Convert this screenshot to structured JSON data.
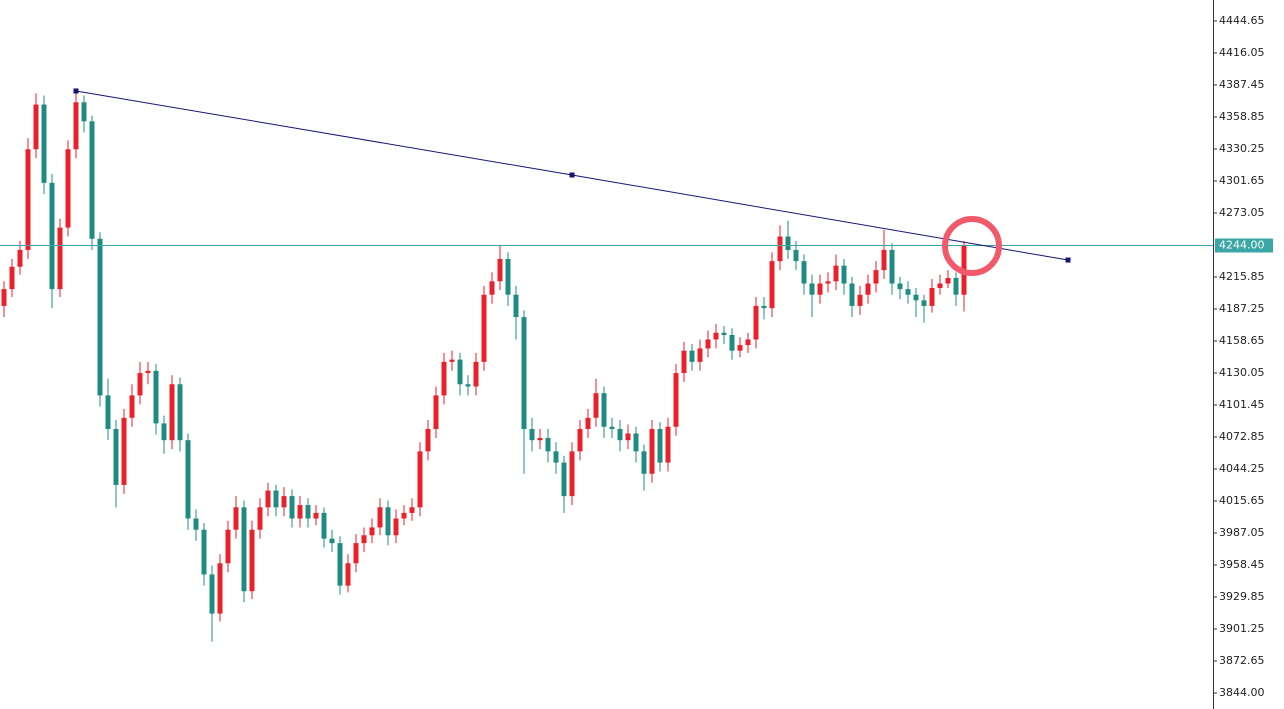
{
  "chart_data": {
    "type": "candlestick",
    "up_color": "#e8212b",
    "down_color": "#1e8c82",
    "ylim": [
      3829.75,
      4463.4
    ],
    "yticks": [
      4444.65,
      4416.05,
      4387.45,
      4358.85,
      4330.25,
      4301.65,
      4273.05,
      4215.85,
      4187.25,
      4158.65,
      4130.05,
      4101.45,
      4072.85,
      4044.25,
      4015.65,
      3987.05,
      3958.45,
      3929.85,
      3901.25,
      3872.65,
      {
        "value": 3844,
        "label": "3844.00"
      }
    ],
    "current_price": {
      "value": 4244,
      "label": "4244.00",
      "color": "#3aa6a6"
    },
    "trendline": {
      "color": "#141478",
      "points": [
        {
          "index": 9,
          "price": 4382.1
        },
        {
          "index": 71,
          "price": 4307
        },
        {
          "index": 133,
          "price": 4231
        }
      ]
    },
    "open": [
      4190,
      4205,
      4225,
      4240,
      4330,
      4370,
      4300,
      4205,
      4260,
      4330,
      4372,
      4355,
      4250,
      4110,
      4080,
      4030,
      4090,
      4110,
      4130,
      4132,
      4085,
      4070,
      4120,
      4070,
      4000,
      3990,
      3950,
      3915,
      3960,
      3990,
      4010,
      3935,
      3990,
      4010,
      4025,
      4010,
      4020,
      4000,
      4012,
      4000,
      4005,
      3982,
      3978,
      3940,
      3960,
      3978,
      3985,
      3992,
      4010,
      3985,
      4000,
      4005,
      4010,
      4060,
      4080,
      4110,
      4140,
      4142,
      4120,
      4118,
      4140,
      4200,
      4212,
      4232,
      4200,
      4180,
      4080,
      4070,
      4072,
      4060,
      4050,
      4020,
      4060,
      4080,
      4090,
      4112,
      4082,
      4080,
      4070,
      4076,
      4060,
      4040,
      4080,
      4050,
      4082,
      4130,
      4150,
      4140,
      4152,
      4160,
      4166,
      4164,
      4150,
      4155,
      4160,
      4190,
      4188,
      4230,
      4252,
      4240,
      4230,
      4210,
      4200,
      4210,
      4212,
      4226,
      4210,
      4190,
      4200,
      4210,
      4222,
      4240,
      4210,
      4205,
      4200,
      4195,
      4190,
      4206,
      4210,
      4215,
      4200
    ],
    "high": [
      4212,
      4232,
      4248,
      4340,
      4380,
      4378,
      4308,
      4268,
      4338,
      4382,
      4378,
      4360,
      4256,
      4125,
      4088,
      4098,
      4120,
      4140,
      4140,
      4138,
      4092,
      4128,
      4126,
      4076,
      4008,
      3996,
      3958,
      3968,
      3998,
      4020,
      4016,
      3998,
      4018,
      4032,
      4030,
      4028,
      4026,
      4020,
      4018,
      4012,
      4010,
      3990,
      3984,
      3968,
      3986,
      3992,
      4000,
      4018,
      4016,
      4008,
      4012,
      4018,
      4068,
      4088,
      4118,
      4148,
      4150,
      4148,
      4128,
      4148,
      4208,
      4220,
      4244,
      4238,
      4208,
      4186,
      4090,
      4080,
      4080,
      4068,
      4056,
      4068,
      4088,
      4098,
      4125,
      4118,
      4090,
      4088,
      4084,
      4082,
      4066,
      4088,
      4086,
      4090,
      4138,
      4158,
      4156,
      4160,
      4168,
      4174,
      4172,
      4170,
      4162,
      4166,
      4198,
      4198,
      4238,
      4262,
      4266,
      4248,
      4236,
      4218,
      4218,
      4220,
      4236,
      4232,
      4216,
      4208,
      4218,
      4230,
      4258,
      4246,
      4216,
      4212,
      4206,
      4200,
      4214,
      4218,
      4222,
      4220,
      4248
    ],
    "low": [
      4180,
      4198,
      4218,
      4232,
      4322,
      4290,
      4188,
      4198,
      4252,
      4322,
      4345,
      4240,
      4100,
      4070,
      4010,
      4022,
      4082,
      4102,
      4120,
      4075,
      4058,
      4062,
      4060,
      3990,
      3980,
      3940,
      3890,
      3908,
      3952,
      3982,
      3925,
      3928,
      3982,
      4002,
      4002,
      4002,
      3992,
      3992,
      3992,
      3994,
      3974,
      3970,
      3932,
      3934,
      3952,
      3970,
      3978,
      3985,
      3976,
      3978,
      3994,
      3998,
      4002,
      4052,
      4072,
      4102,
      4132,
      4110,
      4110,
      4110,
      4132,
      4192,
      4204,
      4190,
      4160,
      4040,
      4060,
      4062,
      4050,
      4040,
      4005,
      4012,
      4052,
      4072,
      4082,
      4072,
      4072,
      4060,
      4062,
      4050,
      4025,
      4032,
      4042,
      4042,
      4074,
      4122,
      4132,
      4132,
      4144,
      4152,
      4156,
      4142,
      4144,
      4148,
      4152,
      4178,
      4180,
      4222,
      4232,
      4222,
      4200,
      4180,
      4192,
      4202,
      4204,
      4200,
      4180,
      4182,
      4192,
      4202,
      4214,
      4200,
      4196,
      4192,
      4180,
      4175,
      4184,
      4200,
      4206,
      4190,
      4185
    ],
    "close": [
      4205,
      4225,
      4240,
      4330,
      4370,
      4300,
      4205,
      4260,
      4330,
      4372,
      4355,
      4250,
      4110,
      4080,
      4030,
      4090,
      4110,
      4130,
      4132,
      4085,
      4070,
      4120,
      4070,
      4000,
      3990,
      3950,
      3915,
      3960,
      3990,
      4010,
      3935,
      3990,
      4010,
      4025,
      4010,
      4020,
      4000,
      4012,
      4000,
      4005,
      3982,
      3978,
      3940,
      3960,
      3978,
      3985,
      3992,
      4010,
      3985,
      4000,
      4005,
      4010,
      4060,
      4080,
      4110,
      4140,
      4142,
      4120,
      4118,
      4140,
      4200,
      4212,
      4232,
      4200,
      4180,
      4080,
      4070,
      4072,
      4060,
      4050,
      4020,
      4060,
      4080,
      4090,
      4112,
      4082,
      4080,
      4070,
      4076,
      4060,
      4040,
      4080,
      4050,
      4082,
      4130,
      4150,
      4140,
      4152,
      4160,
      4166,
      4164,
      4150,
      4155,
      4160,
      4190,
      4188,
      4230,
      4252,
      4240,
      4230,
      4210,
      4200,
      4210,
      4212,
      4226,
      4210,
      4190,
      4200,
      4210,
      4222,
      4240,
      4210,
      4205,
      4200,
      4195,
      4190,
      4206,
      4210,
      4215,
      4200,
      4244
    ]
  }
}
